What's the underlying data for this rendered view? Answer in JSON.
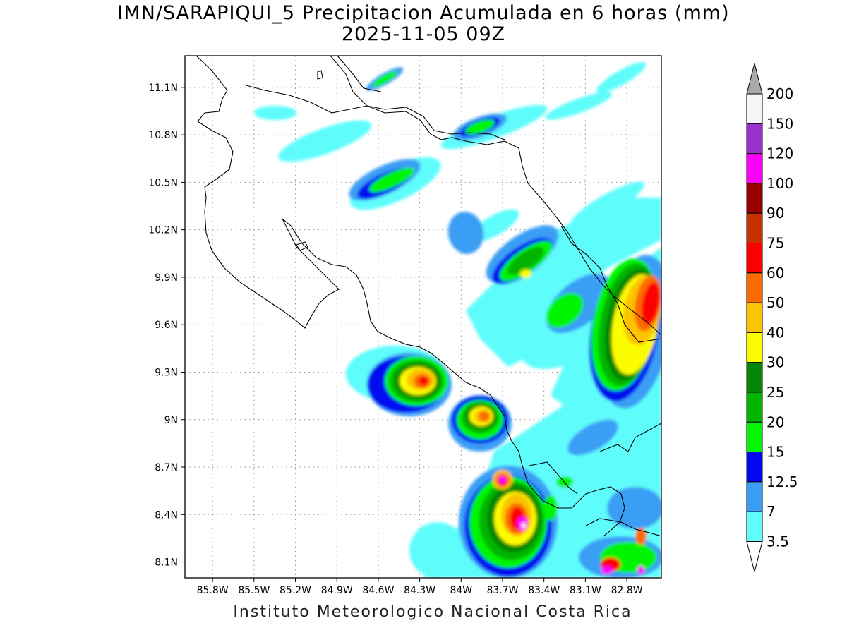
{
  "title": {
    "line1": "IMN/SARAPIQUI_5 Precipitacion Acumulada en 6 horas (mm)",
    "line2": "2025-11-05 09Z"
  },
  "footer": "Instituto Meteorologico Nacional Costa Rica",
  "map": {
    "lon_range": [
      -86.0,
      -82.55
    ],
    "lat_range": [
      8.0,
      11.3
    ],
    "lon_ticks": [
      {
        "value": -85.8,
        "label": "85.8W"
      },
      {
        "value": -85.5,
        "label": "85.5W"
      },
      {
        "value": -85.2,
        "label": "85.2W"
      },
      {
        "value": -84.9,
        "label": "84.9W"
      },
      {
        "value": -84.6,
        "label": "84.6W"
      },
      {
        "value": -84.3,
        "label": "84.3W"
      },
      {
        "value": -84.0,
        "label": "84W"
      },
      {
        "value": -83.7,
        "label": "83.7W"
      },
      {
        "value": -83.4,
        "label": "83.4W"
      },
      {
        "value": -83.1,
        "label": "83.1W"
      },
      {
        "value": -82.8,
        "label": "82.8W"
      }
    ],
    "lat_ticks": [
      {
        "value": 11.1,
        "label": "11.1N"
      },
      {
        "value": 10.8,
        "label": "10.8N"
      },
      {
        "value": 10.5,
        "label": "10.5N"
      },
      {
        "value": 10.2,
        "label": "10.2N"
      },
      {
        "value": 9.9,
        "label": "9.9N"
      },
      {
        "value": 9.6,
        "label": "9.6N"
      },
      {
        "value": 9.3,
        "label": "9.3N"
      },
      {
        "value": 9.0,
        "label": "9N"
      },
      {
        "value": 8.7,
        "label": "8.7N"
      },
      {
        "value": 8.4,
        "label": "8.4N"
      },
      {
        "value": 8.1,
        "label": "8.1N"
      }
    ],
    "grid": true
  },
  "colorbar": {
    "levels": [
      {
        "label": "3.5",
        "color": "#5ffcfc"
      },
      {
        "label": "7",
        "color": "#3a9ef5"
      },
      {
        "label": "12.5",
        "color": "#0009f0"
      },
      {
        "label": "15",
        "color": "#04f404"
      },
      {
        "label": "20",
        "color": "#00b400"
      },
      {
        "label": "25",
        "color": "#058705"
      },
      {
        "label": "30",
        "color": "#fcfc00"
      },
      {
        "label": "40",
        "color": "#fcc300"
      },
      {
        "label": "50",
        "color": "#fc6b00"
      },
      {
        "label": "60",
        "color": "#fc0000"
      },
      {
        "label": "75",
        "color": "#c83200"
      },
      {
        "label": "90",
        "color": "#960000"
      },
      {
        "label": "100",
        "color": "#fc00fc"
      },
      {
        "label": "120",
        "color": "#9932cc"
      },
      {
        "label": "150",
        "color": "#f5f5f5"
      },
      {
        "label": "200",
        "color": "#aaaaaa"
      }
    ],
    "below_color": "#ffffff",
    "above_color": "#aaaaaa"
  }
}
